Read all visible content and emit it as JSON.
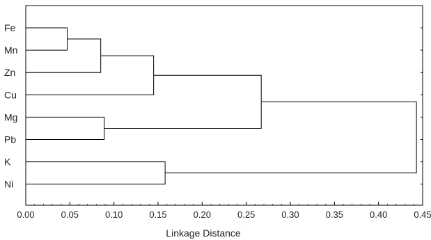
{
  "chart_data": {
    "type": "dendrogram",
    "xlabel": "Linkage Distance",
    "xlim": [
      0,
      0.45
    ],
    "x_ticks": [
      "0.00",
      "0.05",
      "0.10",
      "0.15",
      "0.20",
      "0.25",
      "0.30",
      "0.35",
      "0.40",
      "0.45"
    ],
    "leaves": [
      "Fe",
      "Mn",
      "Zn",
      "Cu",
      "Mg",
      "Pb",
      "K",
      "Ni"
    ],
    "merges": [
      {
        "members": [
          "Fe",
          "Mn"
        ],
        "distance": 0.047
      },
      {
        "members": [
          "Fe-Mn",
          "Zn"
        ],
        "distance": 0.085
      },
      {
        "members": [
          "Fe-Mn-Zn",
          "Cu"
        ],
        "distance": 0.145
      },
      {
        "members": [
          "Mg",
          "Pb"
        ],
        "distance": 0.089
      },
      {
        "members": [
          "Fe-Mn-Zn-Cu",
          "Mg-Pb"
        ],
        "distance": 0.267
      },
      {
        "members": [
          "K",
          "Ni"
        ],
        "distance": 0.158
      },
      {
        "members": [
          "Fe-Mn-Zn-Cu-Mg-Pb",
          "K-Ni"
        ],
        "distance": 0.443
      }
    ],
    "grid": false,
    "line_color": "#000000"
  }
}
